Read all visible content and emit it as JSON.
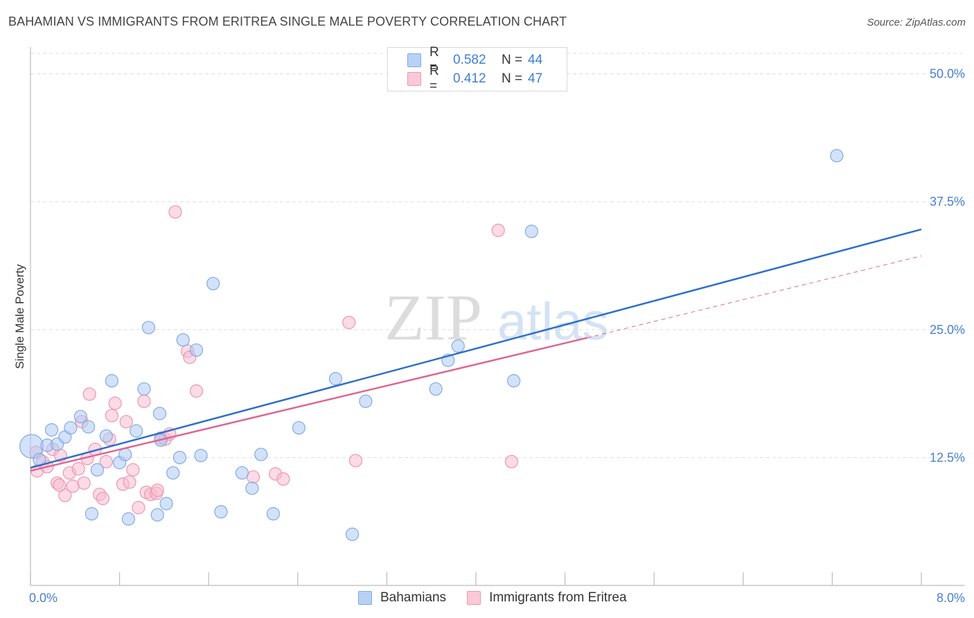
{
  "header": {
    "title": "BAHAMIAN VS IMMIGRANTS FROM ERITREA SINGLE MALE POVERTY CORRELATION CHART",
    "source": "Source: ZipAtlas.com"
  },
  "watermark": {
    "zip": "ZIP",
    "atlas": "atlas"
  },
  "legend": {
    "rows": [
      {
        "r_label": "R =",
        "r_value": "0.582",
        "n_label": "N =",
        "n_value": "44"
      },
      {
        "r_label": "R =",
        "r_value": "0.412",
        "n_label": "N =",
        "n_value": "47"
      }
    ]
  },
  "bottom_legend": {
    "series_a": "Bahamians",
    "series_b": "Immigrants from Eritrea"
  },
  "colors": {
    "blue_fill": "#aecbf4",
    "blue_stroke": "#7eaae6",
    "blue_line": "#2d6fcc",
    "pink_fill": "#f7bed0",
    "pink_stroke": "#ef93b2",
    "pink_line": "#e06592",
    "tick_text": "#4a7fd0",
    "grid": "#dddddd"
  },
  "chart_data": {
    "type": "scatter",
    "title": "BAHAMIAN VS IMMIGRANTS FROM ERITREA SINGLE MALE POVERTY CORRELATION CHART",
    "xlabel": "",
    "ylabel": "Single Male Poverty",
    "xlim": [
      0,
      8
    ],
    "ylim": [
      0,
      52
    ],
    "x_tick_labels": {
      "min": "0.0%",
      "max": "8.0%"
    },
    "y_ticks": [
      {
        "value": 12.5,
        "label": "12.5%"
      },
      {
        "value": 25.0,
        "label": "25.0%"
      },
      {
        "value": 37.5,
        "label": "37.5%"
      },
      {
        "value": 50.0,
        "label": "50.0%"
      }
    ],
    "grid": true,
    "legend_position": "top-center",
    "series": [
      {
        "name": "Bahamians",
        "color": "blue",
        "points": [
          [
            0.01,
            13.6
          ],
          [
            0.08,
            12.3
          ],
          [
            0.15,
            13.7
          ],
          [
            0.19,
            15.2
          ],
          [
            0.24,
            13.8
          ],
          [
            0.31,
            14.5
          ],
          [
            0.36,
            15.4
          ],
          [
            0.45,
            16.5
          ],
          [
            0.52,
            15.5
          ],
          [
            0.55,
            7.0
          ],
          [
            0.6,
            11.3
          ],
          [
            0.68,
            14.6
          ],
          [
            0.73,
            20.0
          ],
          [
            0.8,
            12.0
          ],
          [
            0.85,
            12.8
          ],
          [
            0.88,
            6.5
          ],
          [
            0.95,
            15.1
          ],
          [
            1.02,
            19.2
          ],
          [
            1.06,
            25.2
          ],
          [
            1.14,
            6.9
          ],
          [
            1.16,
            16.8
          ],
          [
            1.22,
            8.0
          ],
          [
            1.28,
            11.0
          ],
          [
            1.34,
            12.5
          ],
          [
            1.37,
            24.0
          ],
          [
            1.49,
            23.0
          ],
          [
            1.53,
            12.7
          ],
          [
            1.64,
            29.5
          ],
          [
            1.71,
            7.2
          ],
          [
            1.9,
            11.0
          ],
          [
            1.99,
            9.5
          ],
          [
            2.07,
            12.8
          ],
          [
            2.18,
            7.0
          ],
          [
            2.41,
            15.4
          ],
          [
            2.74,
            20.2
          ],
          [
            2.89,
            5.0
          ],
          [
            3.01,
            18.0
          ],
          [
            3.64,
            19.2
          ],
          [
            3.75,
            22.0
          ],
          [
            3.84,
            23.4
          ],
          [
            4.34,
            20.0
          ],
          [
            4.5,
            34.6
          ],
          [
            7.24,
            42.0
          ],
          [
            1.17,
            14.2
          ]
        ]
      },
      {
        "name": "Immigrants from Eritrea",
        "color": "pink",
        "points": [
          [
            0.06,
            11.2
          ],
          [
            0.11,
            12.1
          ],
          [
            0.15,
            11.6
          ],
          [
            0.2,
            13.3
          ],
          [
            0.24,
            10.0
          ],
          [
            0.27,
            12.7
          ],
          [
            0.31,
            8.8
          ],
          [
            0.35,
            11.0
          ],
          [
            0.38,
            9.7
          ],
          [
            0.43,
            11.4
          ],
          [
            0.46,
            16.0
          ],
          [
            0.48,
            10.0
          ],
          [
            0.51,
            12.4
          ],
          [
            0.53,
            18.7
          ],
          [
            0.58,
            13.3
          ],
          [
            0.62,
            8.9
          ],
          [
            0.65,
            8.5
          ],
          [
            0.68,
            12.1
          ],
          [
            0.71,
            14.3
          ],
          [
            0.73,
            16.6
          ],
          [
            0.76,
            17.8
          ],
          [
            0.83,
            9.9
          ],
          [
            0.86,
            16.0
          ],
          [
            0.89,
            10.1
          ],
          [
            0.92,
            11.3
          ],
          [
            0.97,
            7.6
          ],
          [
            1.02,
            18.0
          ],
          [
            1.04,
            9.1
          ],
          [
            1.08,
            8.9
          ],
          [
            1.13,
            9.0
          ],
          [
            1.14,
            9.3
          ],
          [
            1.17,
            14.4
          ],
          [
            1.21,
            14.3
          ],
          [
            1.25,
            14.8
          ],
          [
            1.3,
            36.5
          ],
          [
            1.41,
            22.9
          ],
          [
            1.43,
            22.3
          ],
          [
            1.49,
            19.0
          ],
          [
            2.0,
            10.6
          ],
          [
            2.2,
            10.9
          ],
          [
            2.27,
            10.4
          ],
          [
            2.86,
            25.7
          ],
          [
            2.92,
            12.2
          ],
          [
            4.2,
            34.7
          ],
          [
            4.32,
            12.1
          ],
          [
            0.05,
            13.0
          ],
          [
            0.26,
            9.8
          ]
        ]
      }
    ],
    "trend_lines": [
      {
        "series": "Bahamians",
        "x": [
          0.0,
          8.0
        ],
        "y": [
          11.5,
          34.8
        ],
        "style": "solid"
      },
      {
        "series": "Immigrants from Eritrea",
        "x": [
          0.0,
          5.0
        ],
        "y": [
          11.2,
          24.2
        ],
        "style": "solid"
      },
      {
        "series": "Immigrants from Eritrea",
        "x": [
          5.0,
          8.0
        ],
        "y": [
          24.2,
          32.2
        ],
        "style": "dashed"
      }
    ]
  }
}
